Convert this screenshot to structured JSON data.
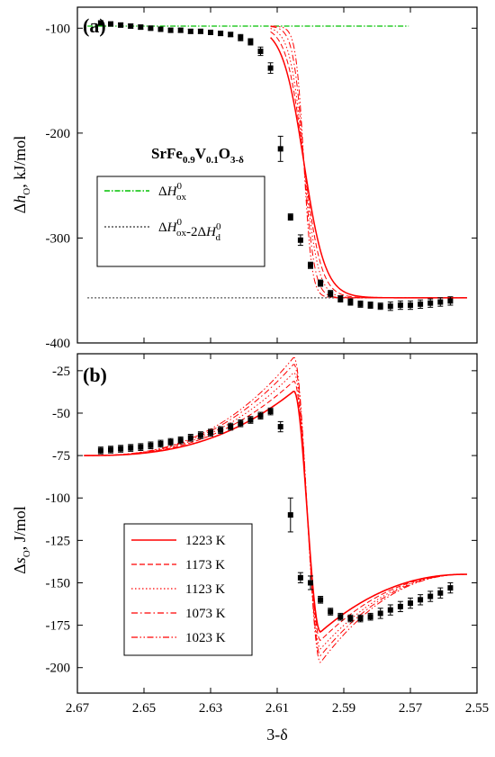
{
  "chart_data": [
    {
      "panel": "a",
      "panel_label": "(a)",
      "type": "scatter",
      "ylabel": "Δh_O, kJ/mol",
      "ylabel_parts": [
        "Δ",
        "h",
        "O",
        ", kJ/mol"
      ],
      "xlim": [
        2.67,
        2.55
      ],
      "ylim": [
        -400,
        -80
      ],
      "yticks": [
        -100,
        -200,
        -300,
        -400
      ],
      "ytick_labels": [
        "-100",
        "-200",
        "-300",
        "-400"
      ],
      "annotation": "SrFe0.9V0.1O3-δ",
      "annotation_parts": [
        "SrFe",
        "0.9",
        "V",
        "0.1",
        "O",
        "3-δ"
      ],
      "legend_position": "center-left",
      "grid": false,
      "reference_lines": [
        {
          "name": "ΔH0ox",
          "label_parts": [
            "ΔH",
            "0",
            "ox"
          ],
          "y": -98,
          "color": "#00c000",
          "style": "dashdot"
        },
        {
          "name": "ΔH0ox-2ΔH0d",
          "label_parts": [
            "ΔH",
            "0",
            "ox",
            "-2ΔH",
            "0",
            "d"
          ],
          "y": -357,
          "color": "#555555",
          "style": "dotted"
        }
      ],
      "model_curves": {
        "color": "#ff0000",
        "y_high": -98,
        "y_low": -357,
        "x_center": 2.602,
        "temperatures_K": [
          1223,
          1173,
          1123,
          1073,
          1023
        ],
        "widths": [
          0.0032,
          0.0026,
          0.0021,
          0.0016,
          0.0012
        ]
      },
      "measured": {
        "color": "#000000",
        "x": [
          2.663,
          2.66,
          2.657,
          2.654,
          2.651,
          2.648,
          2.645,
          2.642,
          2.639,
          2.636,
          2.633,
          2.63,
          2.627,
          2.624,
          2.621,
          2.618,
          2.615,
          2.612,
          2.609,
          2.606,
          2.603,
          2.6,
          2.597,
          2.594,
          2.591,
          2.588,
          2.585,
          2.582,
          2.579,
          2.576,
          2.573,
          2.57,
          2.567,
          2.564,
          2.561,
          2.558
        ],
        "y": [
          -95,
          -96,
          -97,
          -98,
          -99,
          -100,
          -101,
          -102,
          -102,
          -103,
          -103,
          -104,
          -105,
          -106,
          -109,
          -113,
          -122,
          -138,
          -215,
          -280,
          -302,
          -326,
          -343,
          -353,
          -358,
          -361,
          -363,
          -364,
          -365,
          -365,
          -364,
          -364,
          -363,
          -362,
          -361,
          -360
        ],
        "yerr": [
          2,
          2,
          2,
          2,
          2,
          2,
          2,
          2,
          2,
          2,
          2,
          2,
          2,
          2,
          3,
          3,
          4,
          5,
          12,
          3,
          5,
          3,
          3,
          3,
          3,
          3,
          3,
          3,
          3,
          4,
          4,
          4,
          4,
          4,
          4,
          4
        ]
      }
    },
    {
      "panel": "b",
      "panel_label": "(b)",
      "type": "scatter",
      "xlabel": "3-δ",
      "ylabel": "Δs_O, J/mol",
      "ylabel_parts": [
        "Δ",
        "s",
        "O",
        ", J/mol"
      ],
      "xlim": [
        2.67,
        2.55
      ],
      "ylim": [
        -215,
        -15
      ],
      "xticks": [
        2.67,
        2.65,
        2.63,
        2.61,
        2.59,
        2.57,
        2.55
      ],
      "xtick_labels": [
        "2.67",
        "2.65",
        "2.63",
        "2.61",
        "2.59",
        "2.57",
        "2.55"
      ],
      "yticks": [
        -25,
        -50,
        -75,
        -100,
        -125,
        -150,
        -175,
        -200
      ],
      "ytick_labels": [
        "-25",
        "-50",
        "-75",
        "-100",
        "-125",
        "-150",
        "-175",
        "-200"
      ],
      "legend_position": "bottom-left",
      "grid": false,
      "series": [
        {
          "name": "1223 K",
          "temperature_K": 1223,
          "color": "#ff0000",
          "dash": "solid",
          "peak": -37,
          "trough": -179
        },
        {
          "name": "1173 K",
          "temperature_K": 1173,
          "color": "#ff0000",
          "dash": "dash",
          "peak": -31,
          "trough": -184
        },
        {
          "name": "1123 K",
          "temperature_K": 1123,
          "color": "#ff0000",
          "dash": "dot",
          "peak": -26,
          "trough": -189
        },
        {
          "name": "1073 K",
          "temperature_K": 1073,
          "color": "#ff0000",
          "dash": "dashdot",
          "peak": -21,
          "trough": -193
        },
        {
          "name": "1023 K",
          "temperature_K": 1023,
          "color": "#ff0000",
          "dash": "dashdotdot",
          "peak": -17,
          "trough": -197
        }
      ],
      "model_shape": {
        "x_start": 2.668,
        "y_start": -75,
        "x_peak": 2.605,
        "x_cross": 2.601,
        "x_trough": 2.597,
        "x_end": 2.553,
        "y_end": -145
      },
      "measured": {
        "color": "#000000",
        "x": [
          2.663,
          2.66,
          2.657,
          2.654,
          2.651,
          2.648,
          2.645,
          2.642,
          2.639,
          2.636,
          2.633,
          2.63,
          2.627,
          2.624,
          2.621,
          2.618,
          2.615,
          2.612,
          2.609,
          2.606,
          2.603,
          2.6,
          2.597,
          2.594,
          2.591,
          2.588,
          2.585,
          2.582,
          2.579,
          2.576,
          2.573,
          2.57,
          2.567,
          2.564,
          2.561,
          2.558
        ],
        "y": [
          -72,
          -71.5,
          -71,
          -70.5,
          -70,
          -69,
          -68,
          -67,
          -66,
          -64.5,
          -63,
          -61.5,
          -60,
          -58,
          -56,
          -54,
          -51.5,
          -49,
          -58,
          -110,
          -147,
          -150,
          -160,
          -167,
          -170,
          -171,
          -171,
          -170,
          -168,
          -166,
          -164,
          -162,
          -160,
          -158,
          -156,
          -153
        ],
        "yerr": [
          2,
          2,
          2,
          2,
          2,
          2,
          2,
          2,
          2,
          2,
          2,
          2,
          2,
          2,
          2,
          2,
          2,
          2,
          3,
          10,
          3,
          4,
          2,
          2,
          2,
          2,
          2,
          2,
          3,
          3,
          3,
          3,
          3,
          3,
          3,
          3
        ]
      }
    }
  ]
}
